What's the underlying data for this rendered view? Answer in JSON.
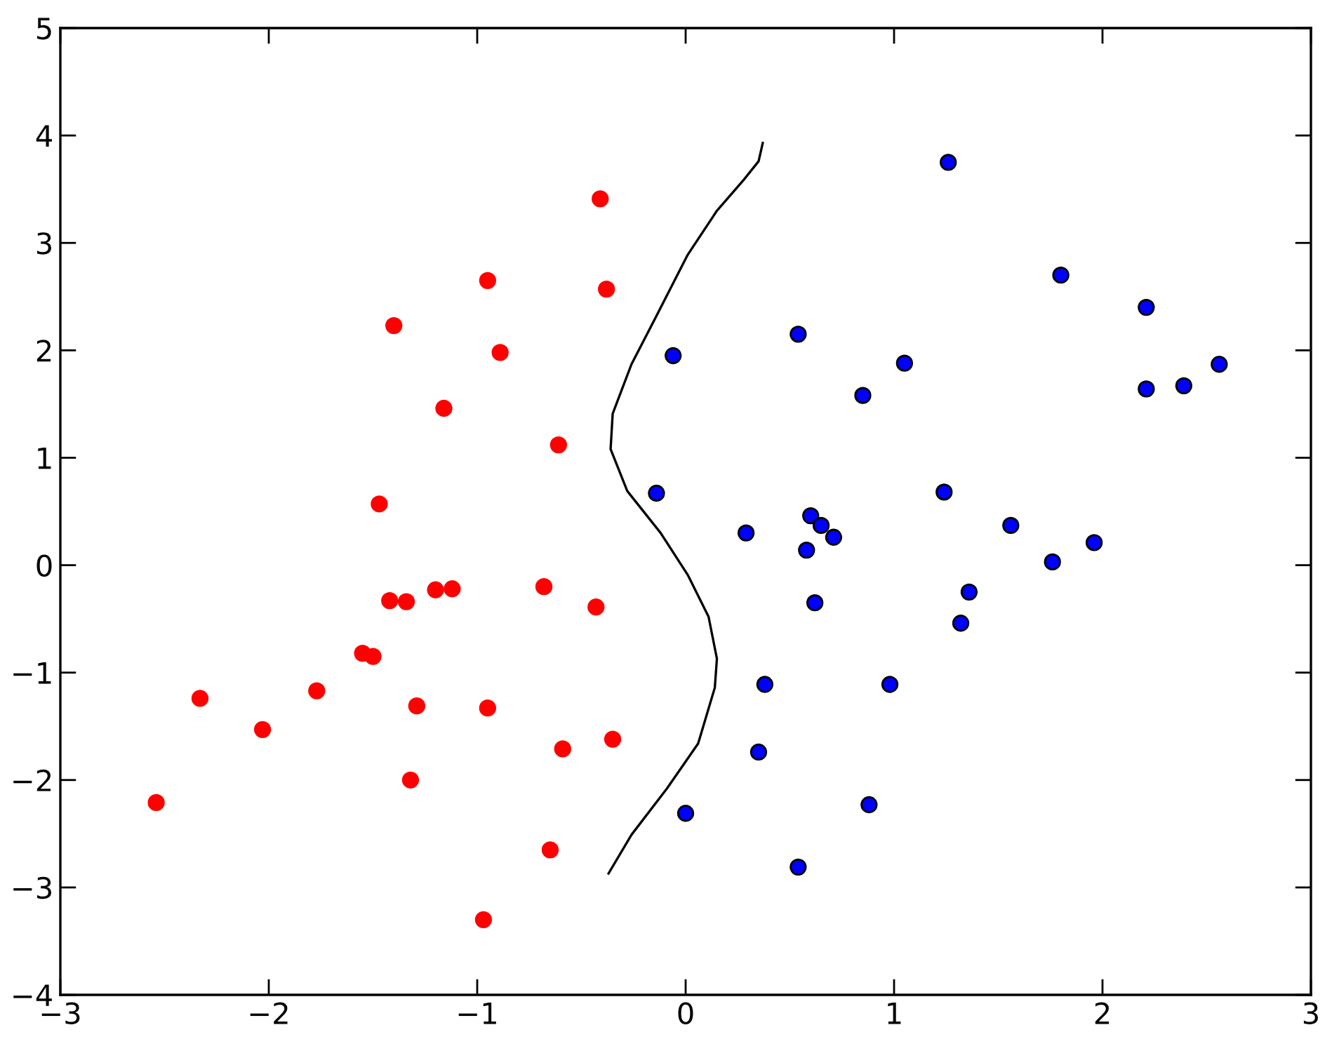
{
  "chart_data": {
    "type": "scatter",
    "xlim": [
      -3,
      3
    ],
    "ylim": [
      -4,
      5
    ],
    "xticks": [
      -3,
      -2,
      -1,
      0,
      1,
      2,
      3
    ],
    "yticks": [
      -4,
      -3,
      -2,
      -1,
      0,
      1,
      2,
      3,
      4,
      5
    ],
    "grid": false,
    "marker": "circle",
    "series": [
      {
        "color": "#ff0000",
        "x": [
          -0.41,
          -0.95,
          -0.38,
          -1.4,
          -0.89,
          -1.16,
          -0.61,
          -1.47,
          -1.42,
          -1.34,
          -1.2,
          -1.12,
          -0.68,
          -0.43,
          -1.55,
          -1.5,
          -2.33,
          -1.77,
          -1.29,
          -0.95,
          -2.03,
          -0.35,
          -0.59,
          -1.32,
          -2.54,
          -0.65,
          -0.97
        ],
        "values": [
          3.41,
          2.65,
          2.57,
          2.23,
          1.98,
          1.46,
          1.12,
          0.57,
          -0.33,
          -0.34,
          -0.23,
          -0.22,
          -0.2,
          -0.39,
          -0.82,
          -0.85,
          -1.24,
          -1.17,
          -1.31,
          -1.33,
          -1.53,
          -1.62,
          -1.71,
          -2.0,
          -2.21,
          -2.65,
          -3.3
        ]
      },
      {
        "color": "#0000ff",
        "x": [
          1.26,
          1.8,
          2.21,
          0.54,
          -0.06,
          1.05,
          2.56,
          2.39,
          2.21,
          0.85,
          -0.14,
          1.24,
          0.6,
          0.65,
          0.71,
          0.29,
          1.56,
          1.96,
          0.58,
          1.76,
          1.36,
          0.62,
          1.32,
          0.38,
          0.98,
          0.35,
          0.88,
          0.0,
          0.54
        ],
        "values": [
          3.75,
          2.7,
          2.4,
          2.15,
          1.95,
          1.88,
          1.87,
          1.67,
          1.64,
          1.58,
          0.67,
          0.68,
          0.46,
          0.37,
          0.26,
          0.3,
          0.37,
          0.21,
          0.14,
          0.03,
          -0.25,
          -0.35,
          -0.54,
          -1.11,
          -1.11,
          -1.74,
          -2.23,
          -2.31,
          -2.81
        ]
      },
      {
        "type": "line",
        "color": "#000000",
        "marker": "none",
        "line_style": "solid",
        "x": [
          -0.37,
          -0.26,
          -0.09,
          0.06,
          0.14,
          0.15,
          0.11,
          0.01,
          -0.12,
          -0.28,
          -0.36,
          -0.35,
          -0.26,
          -0.14,
          0.01,
          0.15,
          0.28,
          0.35,
          0.37
        ],
        "values": [
          -2.87,
          -2.51,
          -2.08,
          -1.66,
          -1.14,
          -0.87,
          -0.48,
          -0.09,
          0.3,
          0.69,
          1.08,
          1.41,
          1.87,
          2.32,
          2.89,
          3.3,
          3.59,
          3.76,
          3.93
        ]
      }
    ]
  }
}
